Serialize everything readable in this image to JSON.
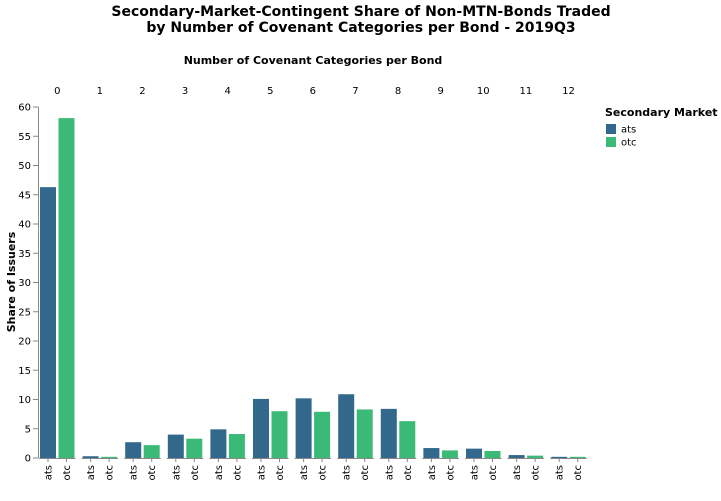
{
  "chart_data": {
    "type": "bar",
    "title": [
      "Secondary-Market-Contingent Share of Non-MTN-Bonds Traded",
      "by Number of Covenant Categories per Bond - 2019Q3"
    ],
    "column_title": "Number of Covenant Categories per Bond",
    "categories": [
      "0",
      "1",
      "2",
      "3",
      "4",
      "5",
      "6",
      "7",
      "8",
      "9",
      "10",
      "11",
      "12"
    ],
    "sub_categories": [
      "ats",
      "otc"
    ],
    "series": [
      {
        "name": "ats",
        "color": "#32688c",
        "values": [
          46.3,
          0.3,
          2.7,
          4.0,
          4.9,
          10.1,
          10.2,
          10.9,
          8.4,
          1.7,
          1.6,
          0.5,
          0.2
        ]
      },
      {
        "name": "otc",
        "color": "#3aba76",
        "values": [
          58.1,
          0.2,
          2.2,
          3.3,
          4.1,
          8.0,
          7.9,
          8.3,
          6.3,
          1.3,
          1.2,
          0.4,
          0.2
        ]
      }
    ],
    "ylabel": "Share of Issuers",
    "ylim": [
      0,
      60
    ],
    "yticks": [
      0,
      5,
      10,
      15,
      20,
      25,
      30,
      35,
      40,
      45,
      50,
      55,
      60
    ],
    "grid": false,
    "legend": {
      "title": "Secondary Market",
      "position": "top-right"
    }
  }
}
